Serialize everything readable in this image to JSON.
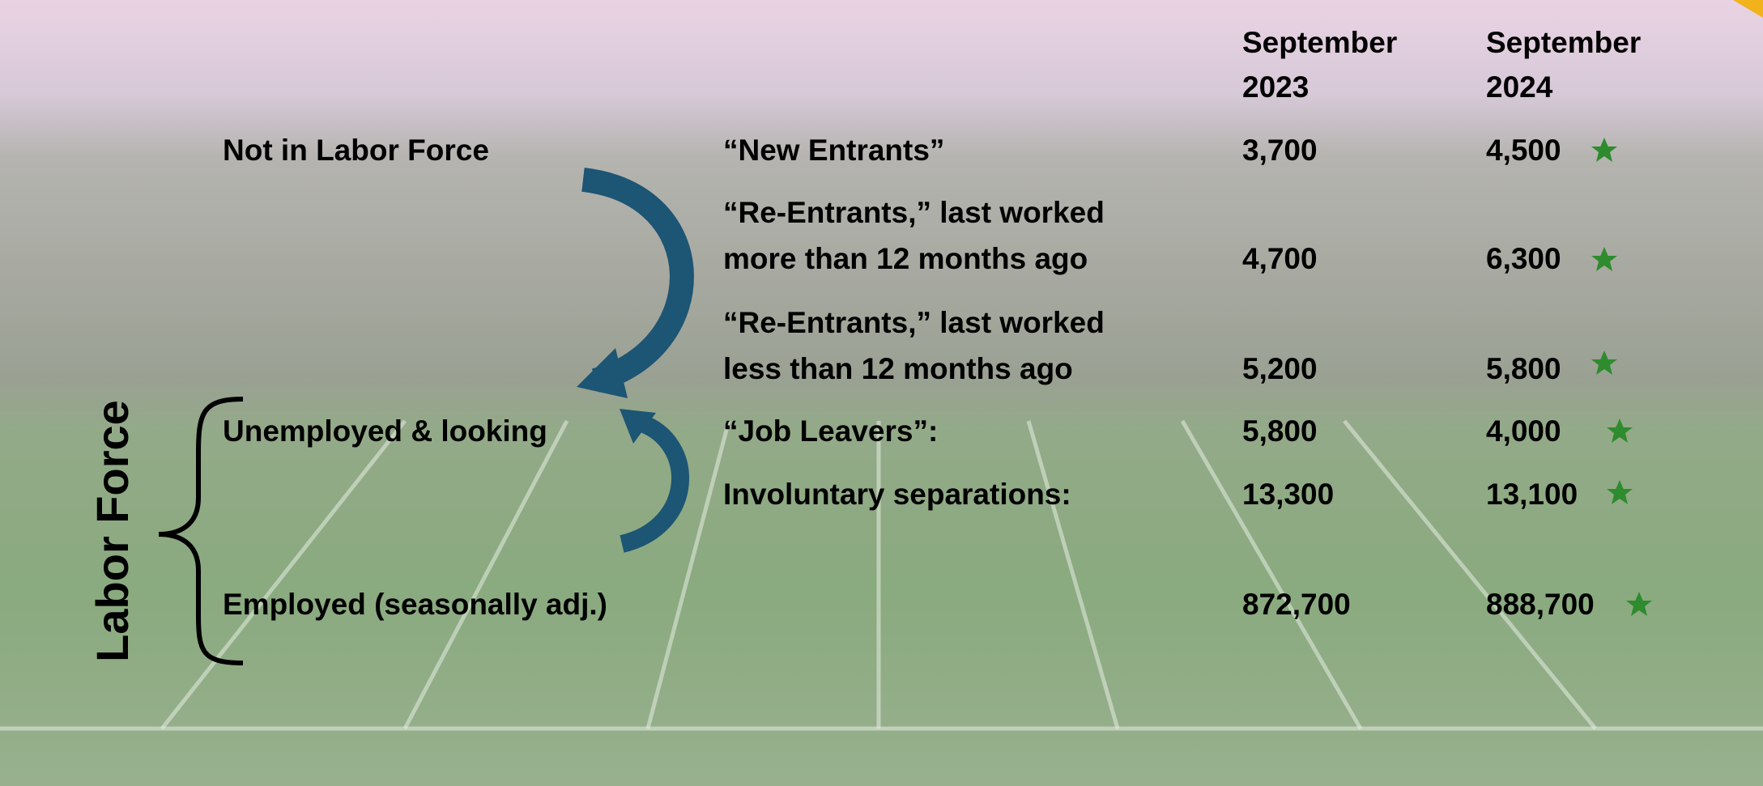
{
  "header": {
    "col1": [
      "September",
      "2023"
    ],
    "col2": [
      "September",
      "2024"
    ]
  },
  "groups": {
    "not_in_labor_force": "Not in Labor Force",
    "unemployed": "Unemployed & looking",
    "employed": "Employed (seasonally adj.)",
    "labor_force": "Labor Force"
  },
  "rows": [
    {
      "label": [
        "“New Entrants”"
      ],
      "v2023": "3,700",
      "v2024": "4,500"
    },
    {
      "label": [
        "“Re-Entrants,” last worked",
        "more than 12 months ago"
      ],
      "v2023": "4,700",
      "v2024": "6,300"
    },
    {
      "label": [
        "“Re-Entrants,” last worked",
        "less than 12 months ago"
      ],
      "v2023": "5,200",
      "v2024": "5,800"
    },
    {
      "label": [
        "“Job Leavers”:"
      ],
      "v2023": "5,800",
      "v2024": "4,000"
    },
    {
      "label": [
        "Involuntary separations:"
      ],
      "v2023": "13,300",
      "v2024": "13,100"
    },
    {
      "label": [],
      "v2023": "872,700",
      "v2024": "888,700"
    }
  ]
}
